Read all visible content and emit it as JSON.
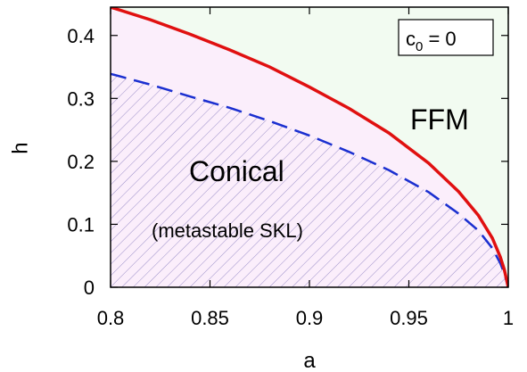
{
  "chart_data": {
    "type": "line",
    "xlabel": "a",
    "ylabel": "h",
    "xlim": [
      0.8,
      1.0
    ],
    "ylim": [
      0,
      0.445
    ],
    "x_ticks": [
      "0.8",
      "0.85",
      "0.9",
      "0.95",
      "1"
    ],
    "y_ticks": [
      "0",
      "0.1",
      "0.2",
      "0.3",
      "0.4"
    ],
    "x_tick_values": [
      0.8,
      0.85,
      0.9,
      0.95,
      1.0
    ],
    "y_tick_values": [
      0,
      0.1,
      0.2,
      0.3,
      0.4
    ],
    "grid": false,
    "legend_box": "c0 = 0",
    "legend_box_main": "c",
    "legend_box_sub": "0",
    "legend_box_rest": " = 0",
    "legend_placement": "top-right",
    "region_labels": {
      "ffm": "FFM",
      "conical": "Conical",
      "metastable": "(metastable SKL)"
    },
    "colors": {
      "upper_boundary": "#e01010",
      "lower_boundary": "#1a2fd0",
      "conical_fill": "#fbeefb",
      "ffm_fill": "#f2fbf1",
      "hatch": "#9c8fc9"
    },
    "series": [
      {
        "style": "solid",
        "x": [
          0.8,
          0.82,
          0.84,
          0.86,
          0.88,
          0.9,
          0.92,
          0.94,
          0.96,
          0.975,
          0.985,
          0.992,
          0.996,
          0.998,
          1.0
        ],
        "y": [
          0.445,
          0.425,
          0.402,
          0.377,
          0.35,
          0.318,
          0.284,
          0.245,
          0.197,
          0.152,
          0.114,
          0.078,
          0.048,
          0.028,
          0.0
        ]
      },
      {
        "style": "dashed",
        "x": [
          0.8,
          0.82,
          0.84,
          0.86,
          0.88,
          0.9,
          0.92,
          0.94,
          0.96,
          0.975,
          0.985,
          0.992,
          0.996,
          0.998,
          1.0
        ],
        "y": [
          0.339,
          0.322,
          0.303,
          0.285,
          0.264,
          0.241,
          0.215,
          0.186,
          0.151,
          0.117,
          0.09,
          0.062,
          0.038,
          0.022,
          0.0
        ]
      }
    ]
  }
}
